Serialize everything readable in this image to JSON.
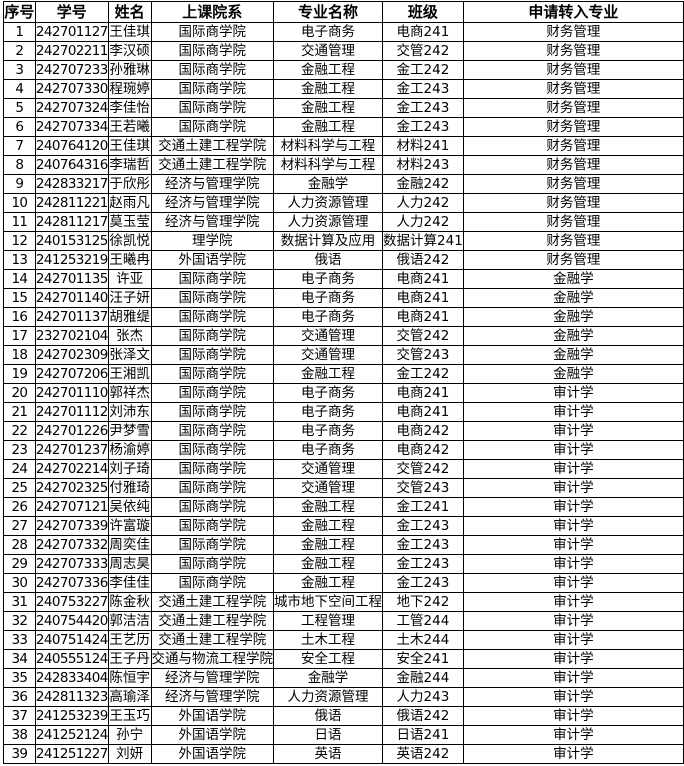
{
  "headers": [
    "序号",
    "学号",
    "姓名",
    "上课院系",
    "专业名称",
    "班级",
    "申请转入专业"
  ],
  "rows": [
    [
      "1",
      "242701127",
      "王佳琪",
      "国际商学院",
      "电子商务",
      "电商241",
      "财务管理"
    ],
    [
      "2",
      "242702211",
      "李汉硕",
      "国际商学院",
      "交通管理",
      "交管242",
      "财务管理"
    ],
    [
      "3",
      "242707233",
      "孙雅琳",
      "国际商学院",
      "金融工程",
      "金工242",
      "财务管理"
    ],
    [
      "4",
      "242707330",
      "程琬婷",
      "国际商学院",
      "金融工程",
      "金工243",
      "财务管理"
    ],
    [
      "5",
      "242707324",
      "李佳怡",
      "国际商学院",
      "金融工程",
      "金工243",
      "财务管理"
    ],
    [
      "6",
      "242707334",
      "王若曦",
      "国际商学院",
      "金融工程",
      "金工243",
      "财务管理"
    ],
    [
      "7",
      "240764120",
      "王佳琪",
      "交通土建工程学院",
      "材料科学与工程",
      "材料241",
      "财务管理"
    ],
    [
      "8",
      "240764316",
      "李瑞哲",
      "交通土建工程学院",
      "材料科学与工程",
      "材料243",
      "财务管理"
    ],
    [
      "9",
      "242833217",
      "于欣彤",
      "经济与管理学院",
      "金融学",
      "金融242",
      "财务管理"
    ],
    [
      "10",
      "242811221",
      "赵雨凡",
      "经济与管理学院",
      "人力资源管理",
      "人力242",
      "财务管理"
    ],
    [
      "11",
      "242811217",
      "莫玉莹",
      "经济与管理学院",
      "人力资源管理",
      "人力242",
      "财务管理"
    ],
    [
      "12",
      "240153125",
      "徐凯悦",
      "理学院",
      "数据计算及应用",
      "数据计算241",
      "财务管理"
    ],
    [
      "13",
      "241253219",
      "王曦冉",
      "外国语学院",
      "俄语",
      "俄语242",
      "财务管理"
    ],
    [
      "14",
      "242701135",
      "许亚",
      "国际商学院",
      "电子商务",
      "电商241",
      "金融学"
    ],
    [
      "15",
      "242701140",
      "汪子妍",
      "国际商学院",
      "电子商务",
      "电商241",
      "金融学"
    ],
    [
      "16",
      "242701137",
      "胡雅缇",
      "国际商学院",
      "电子商务",
      "电商241",
      "金融学"
    ],
    [
      "17",
      "232702104",
      "张杰",
      "国际商学院",
      "交通管理",
      "交管242",
      "金融学"
    ],
    [
      "18",
      "242702309",
      "张泽文",
      "国际商学院",
      "交通管理",
      "交管243",
      "金融学"
    ],
    [
      "19",
      "242707206",
      "王湘凯",
      "国际商学院",
      "金融工程",
      "金工242",
      "金融学"
    ],
    [
      "20",
      "242701110",
      "郭祥杰",
      "国际商学院",
      "电子商务",
      "电商241",
      "审计学"
    ],
    [
      "21",
      "242701112",
      "刘沛东",
      "国际商学院",
      "电子商务",
      "电商241",
      "审计学"
    ],
    [
      "22",
      "242701226",
      "尹梦雪",
      "国际商学院",
      "电子商务",
      "电商242",
      "审计学"
    ],
    [
      "23",
      "242701237",
      "杨渝婷",
      "国际商学院",
      "电子商务",
      "电商242",
      "审计学"
    ],
    [
      "24",
      "242702214",
      "刘子琦",
      "国际商学院",
      "交通管理",
      "交管242",
      "审计学"
    ],
    [
      "25",
      "242702325",
      "付雅琦",
      "国际商学院",
      "交通管理",
      "交管243",
      "审计学"
    ],
    [
      "26",
      "242707121",
      "吴依纯",
      "国际商学院",
      "金融工程",
      "金工241",
      "审计学"
    ],
    [
      "27",
      "242707339",
      "许富璇",
      "国际商学院",
      "金融工程",
      "金工243",
      "审计学"
    ],
    [
      "28",
      "242707332",
      "周奕佳",
      "国际商学院",
      "金融工程",
      "金工243",
      "审计学"
    ],
    [
      "29",
      "242707333",
      "周志昊",
      "国际商学院",
      "金融工程",
      "金工243",
      "审计学"
    ],
    [
      "30",
      "242707336",
      "李佳佳",
      "国际商学院",
      "金融工程",
      "金工243",
      "审计学"
    ],
    [
      "31",
      "240753227",
      "陈金秋",
      "交通土建工程学院",
      "城市地下空间工程",
      "地下242",
      "审计学"
    ],
    [
      "32",
      "240754420",
      "郭洁洁",
      "交通土建工程学院",
      "工程管理",
      "工管244",
      "审计学"
    ],
    [
      "33",
      "240751424",
      "王艺历",
      "交通土建工程学院",
      "土木工程",
      "土木244",
      "审计学"
    ],
    [
      "34",
      "240555124",
      "王子丹",
      "交通与物流工程学院",
      "安全工程",
      "安全241",
      "审计学"
    ],
    [
      "35",
      "242833404",
      "陈恒宇",
      "经济与管理学院",
      "金融学",
      "金融244",
      "审计学"
    ],
    [
      "36",
      "242811323",
      "高瑜泽",
      "经济与管理学院",
      "人力资源管理",
      "人力243",
      "审计学"
    ],
    [
      "37",
      "241253239",
      "王玉巧",
      "外国语学院",
      "俄语",
      "俄语242",
      "审计学"
    ],
    [
      "38",
      "241252124",
      "孙宁",
      "外国语学院",
      "日语",
      "日语241",
      "审计学"
    ],
    [
      "39",
      "241251227",
      "刘妍",
      "外国语学院",
      "英语",
      "英语242",
      "审计学"
    ]
  ]
}
